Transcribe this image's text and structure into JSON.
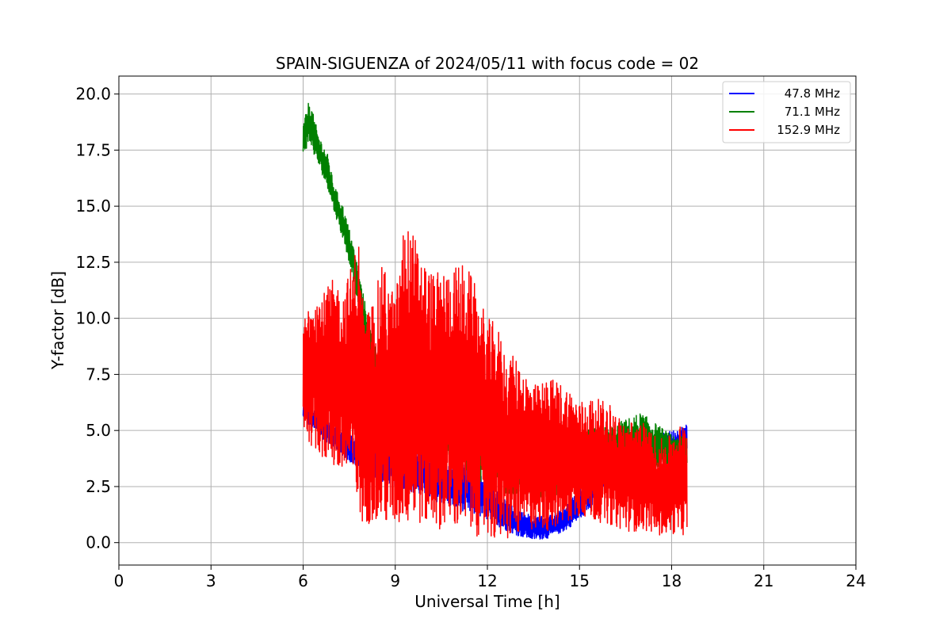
{
  "chart_data": {
    "type": "line",
    "title": "SPAIN-SIGUENZA of 2024/05/11 with focus code = 02",
    "xlabel": "Universal Time [h]",
    "ylabel": "Y-factor [dB]",
    "xlim": [
      0,
      24
    ],
    "ylim": [
      -1,
      20.8
    ],
    "xticks": [
      0,
      3,
      6,
      9,
      12,
      15,
      18,
      21,
      24
    ],
    "xtick_labels": [
      "0",
      "3",
      "6",
      "9",
      "12",
      "15",
      "18",
      "21",
      "24"
    ],
    "yticks": [
      0,
      2.5,
      5,
      7.5,
      10,
      12.5,
      15,
      17.5,
      20
    ],
    "ytick_labels": [
      "0.0",
      "2.5",
      "5.0",
      "7.5",
      "10.0",
      "12.5",
      "15.0",
      "17.5",
      "20.0"
    ],
    "grid": true,
    "legend_position": "top-right",
    "series": [
      {
        "name": "47.8 MHz",
        "color": "#0000ff",
        "x": [
          6.0,
          6.5,
          7.0,
          7.5,
          8.0,
          9.0,
          10.0,
          11.0,
          12.0,
          12.5,
          13.0,
          13.5,
          14.0,
          14.5,
          15.0,
          15.5,
          16.0,
          16.5,
          17.0,
          17.5,
          18.0,
          18.5
        ],
        "low": [
          5.5,
          4.8,
          4.2,
          3.6,
          3.0,
          2.5,
          2.0,
          1.5,
          1.0,
          0.6,
          0.3,
          0.1,
          0.2,
          0.5,
          1.0,
          1.8,
          2.5,
          3.0,
          3.2,
          3.4,
          3.6,
          3.8
        ],
        "high": [
          6.2,
          5.8,
          5.2,
          4.8,
          4.5,
          4.2,
          4.0,
          3.6,
          3.0,
          2.0,
          1.5,
          1.2,
          1.2,
          1.5,
          2.5,
          3.4,
          4.0,
          4.4,
          4.6,
          4.8,
          5.0,
          5.3
        ]
      },
      {
        "name": "71.1 MHz",
        "color": "#008000",
        "x": [
          6.0,
          6.2,
          6.5,
          6.8,
          7.0,
          7.3,
          7.6,
          7.9,
          8.2,
          8.6,
          9.0,
          10.0,
          11.0,
          12.0,
          13.0,
          14.0,
          15.0,
          16.0,
          17.0,
          17.5,
          18.0,
          18.5
        ],
        "low": [
          17.3,
          17.8,
          16.8,
          15.8,
          14.8,
          13.5,
          12.0,
          9.5,
          7.8,
          6.5,
          6.0,
          4.5,
          3.5,
          2.5,
          2.0,
          2.0,
          2.5,
          3.0,
          3.0,
          3.2,
          3.2,
          3.3
        ],
        "high": [
          18.6,
          19.8,
          18.2,
          17.3,
          16.0,
          15.0,
          13.5,
          11.5,
          9.5,
          7.5,
          7.0,
          6.5,
          5.5,
          5.0,
          4.5,
          4.5,
          5.0,
          5.2,
          5.8,
          5.3,
          4.8,
          4.8
        ]
      },
      {
        "name": "152.9 MHz",
        "color": "#ff0000",
        "x": [
          6.0,
          6.3,
          6.6,
          7.0,
          7.3,
          7.6,
          7.8,
          8.0,
          8.3,
          8.6,
          9.0,
          9.3,
          9.6,
          10.0,
          10.3,
          10.6,
          11.0,
          11.3,
          11.6,
          12.0,
          12.3,
          12.6,
          13.0,
          13.3,
          13.6,
          14.0,
          14.3,
          14.6,
          15.0,
          15.3,
          15.6,
          16.0,
          16.3,
          16.6,
          17.0,
          17.3,
          17.6,
          18.0,
          18.3,
          18.5
        ],
        "low": [
          5.0,
          4.2,
          3.8,
          3.2,
          2.8,
          2.5,
          1.0,
          0.8,
          0.9,
          0.7,
          0.6,
          0.8,
          0.7,
          0.8,
          0.6,
          0.6,
          0.5,
          0.4,
          0.3,
          0.2,
          0.0,
          0.0,
          0.3,
          0.5,
          0.6,
          0.5,
          0.7,
          0.8,
          1.2,
          1.0,
          0.9,
          0.8,
          0.6,
          0.5,
          0.5,
          0.5,
          0.3,
          0.4,
          0.3,
          0.4
        ],
        "high": [
          9.8,
          11.5,
          11.0,
          11.8,
          11.3,
          12.5,
          13.8,
          10.0,
          11.0,
          12.5,
          11.0,
          14.4,
          13.8,
          12.5,
          12.0,
          12.2,
          12.4,
          12.5,
          11.5,
          10.0,
          9.8,
          8.5,
          8.2,
          7.5,
          7.0,
          7.4,
          7.2,
          7.0,
          6.3,
          6.5,
          6.4,
          6.2,
          5.6,
          5.4,
          5.5,
          5.0,
          4.6,
          4.8,
          5.3,
          5.3
        ]
      }
    ]
  }
}
